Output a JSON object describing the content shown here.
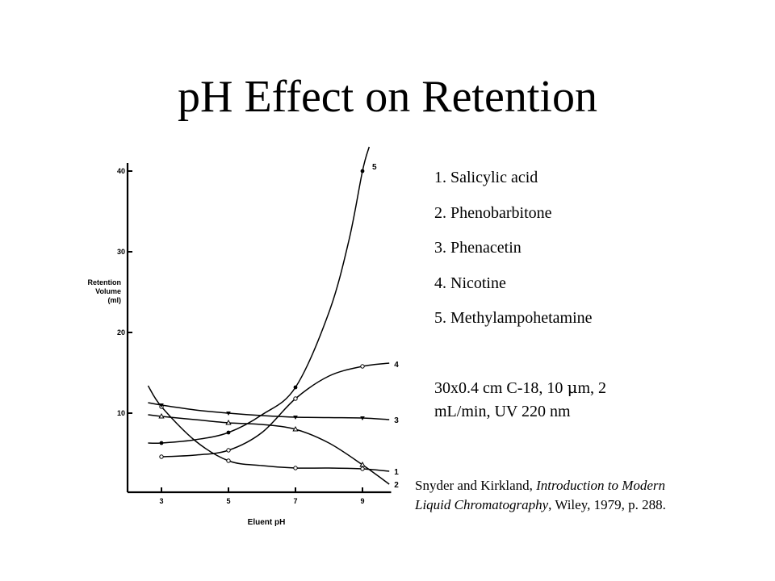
{
  "slide": {
    "title": "pH Effect on Retention"
  },
  "legend": [
    "1. Salicylic acid",
    "2. Phenobarbitone",
    "3. Phenacetin",
    "4. Nicotine",
    "5. Methylampohetamine"
  ],
  "conditions": {
    "line1_before_mu": "30x0.4 cm C-18, 10 ",
    "mu": "μ",
    "line1_after_mu": "m, 2",
    "line2": "mL/min, UV 220 nm"
  },
  "citation": {
    "authors": "Snyder and Kirkland, ",
    "title_line1": "Introduction to Modern",
    "title_line2": "Liquid Chromatography",
    "rest": ", Wiley, 1979, p. 288."
  },
  "chart_data": {
    "type": "line",
    "xlabel": "Eluent pH",
    "ylabel": [
      "Retention",
      "Volume",
      "(ml)"
    ],
    "xticks": [
      3,
      5,
      7,
      9
    ],
    "yticks": [
      10,
      20,
      30,
      40
    ],
    "xlim": [
      2,
      10
    ],
    "ylim": [
      0,
      41
    ],
    "grid": false,
    "series": [
      {
        "name": "1",
        "marker": "open-circle",
        "points": [
          [
            3,
            10.8
          ],
          [
            5,
            4.1
          ],
          [
            7,
            3.2
          ],
          [
            9,
            3.1
          ]
        ],
        "curve": [
          [
            2.6,
            13.4
          ],
          [
            3,
            10.8
          ],
          [
            4,
            6.6
          ],
          [
            5,
            4.1
          ],
          [
            6,
            3.5
          ],
          [
            7,
            3.2
          ],
          [
            8,
            3.2
          ],
          [
            9,
            3.1
          ],
          [
            9.8,
            2.8
          ]
        ]
      },
      {
        "name": "2",
        "marker": "open-triangle",
        "points": [
          [
            3,
            9.6
          ],
          [
            5,
            8.8
          ],
          [
            7,
            8.0
          ],
          [
            9,
            3.6
          ]
        ],
        "curve": [
          [
            2.6,
            9.8
          ],
          [
            3,
            9.6
          ],
          [
            4,
            9.2
          ],
          [
            5,
            8.8
          ],
          [
            6,
            8.6
          ],
          [
            7,
            8.0
          ],
          [
            8,
            6.3
          ],
          [
            9,
            3.6
          ],
          [
            9.8,
            1.2
          ]
        ]
      },
      {
        "name": "3",
        "marker": "filled-triangle-down",
        "points": [
          [
            3,
            11.0
          ],
          [
            5,
            10.0
          ],
          [
            7,
            9.5
          ],
          [
            9,
            9.4
          ]
        ],
        "curve": [
          [
            2.6,
            11.3
          ],
          [
            3,
            11.0
          ],
          [
            4,
            10.4
          ],
          [
            5,
            10.0
          ],
          [
            6,
            9.7
          ],
          [
            7,
            9.5
          ],
          [
            8,
            9.45
          ],
          [
            9,
            9.4
          ],
          [
            9.8,
            9.2
          ]
        ]
      },
      {
        "name": "4",
        "marker": "open-circle",
        "points": [
          [
            3,
            4.6
          ],
          [
            5,
            5.4
          ],
          [
            7,
            11.8
          ],
          [
            9,
            15.8
          ]
        ],
        "curve": [
          [
            3,
            4.6
          ],
          [
            4,
            4.8
          ],
          [
            5,
            5.4
          ],
          [
            6,
            7.6
          ],
          [
            7,
            11.8
          ],
          [
            8,
            14.6
          ],
          [
            9,
            15.8
          ],
          [
            9.8,
            16.2
          ]
        ]
      },
      {
        "name": "5",
        "marker": "filled-circle",
        "points": [
          [
            3,
            6.3
          ],
          [
            5,
            7.6
          ],
          [
            7,
            13.2
          ],
          [
            9,
            40.0
          ]
        ],
        "curve": [
          [
            2.6,
            6.3
          ],
          [
            3,
            6.3
          ],
          [
            4,
            6.7
          ],
          [
            5,
            7.6
          ],
          [
            6,
            9.8
          ],
          [
            7,
            13.2
          ],
          [
            8,
            22.5
          ],
          [
            8.6,
            31.5
          ],
          [
            9,
            40.0
          ],
          [
            9.2,
            43.0
          ]
        ]
      }
    ]
  }
}
